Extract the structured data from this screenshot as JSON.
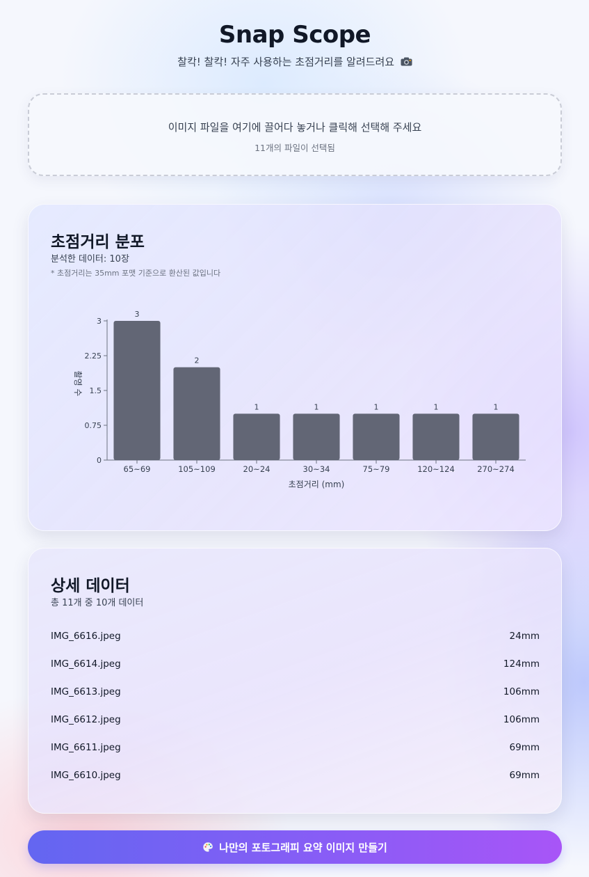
{
  "header": {
    "title": "Snap Scope",
    "subtitle": "찰칵! 찰칵! 자주 사용하는 초점거리를 알려드려요",
    "subtitle_icon": "camera-icon"
  },
  "dropzone": {
    "main_text": "이미지 파일을 여기에 끌어다 놓거나 클릭해 선택해 주세요",
    "status_text": "11개의 파일이 선택됨"
  },
  "chart_card": {
    "title": "초점거리 분포",
    "analyzed": "분석한 데이터: 10장",
    "note": "* 초점거리는 35mm 포맷 기준으로 환산된 값입니다"
  },
  "chart_data": {
    "type": "bar",
    "categories": [
      "65~69",
      "105~109",
      "20~24",
      "30~34",
      "75~79",
      "120~124",
      "270~274"
    ],
    "values": [
      3,
      2,
      1,
      1,
      1,
      1,
      1
    ],
    "xlabel": "초점거리 (mm)",
    "ylabel": "촬영 수",
    "ylim": [
      0,
      3
    ],
    "yticks": [
      "0",
      "0.75",
      "1.5",
      "2.25",
      "3"
    ],
    "ytick_values": [
      0,
      0.75,
      1.5,
      2.25,
      3
    ],
    "bar_color": "#5b5f6e",
    "data_labels": true,
    "grid": false
  },
  "detail_card": {
    "title": "상세 데이터",
    "summary": "총 11개 중 10개 데이터",
    "rows": [
      {
        "file": "IMG_6616.jpeg",
        "focal": "24mm"
      },
      {
        "file": "IMG_6614.jpeg",
        "focal": "124mm"
      },
      {
        "file": "IMG_6613.jpeg",
        "focal": "106mm"
      },
      {
        "file": "IMG_6612.jpeg",
        "focal": "106mm"
      },
      {
        "file": "IMG_6611.jpeg",
        "focal": "69mm"
      },
      {
        "file": "IMG_6610.jpeg",
        "focal": "69mm"
      }
    ]
  },
  "cta": {
    "label": "나만의 포토그래피 요약 이미지 만들기",
    "icon": "palette-icon"
  },
  "colors": {
    "accent_start": "#6366f1",
    "accent_end": "#a855f7",
    "bar": "#5b5f6e"
  }
}
